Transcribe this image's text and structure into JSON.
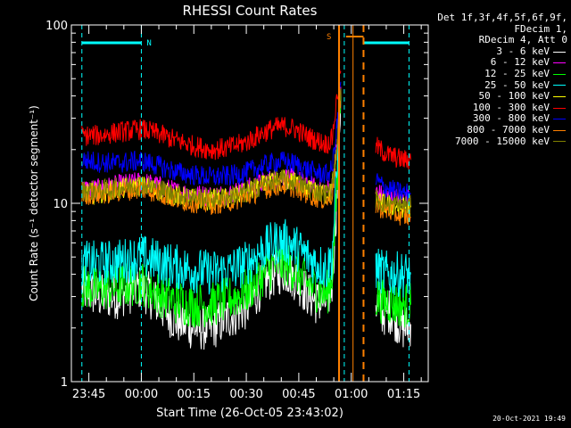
{
  "chart_data": {
    "type": "line",
    "title": "RHESSI Count Rates",
    "xlabel": "Start Time (26-Oct-05 23:43:02)",
    "ylabel": "Count Rate (s⁻¹ detector segment⁻¹)",
    "y_scale": "log",
    "ylim": [
      1,
      100
    ],
    "xlim_minutes_from_2343": [
      -3,
      99
    ],
    "y_tick_labels": [
      "1",
      "10",
      "100"
    ],
    "x_tick_labels": [
      "23:45",
      "00:00",
      "00:15",
      "00:30",
      "00:45",
      "01:00",
      "01:15"
    ],
    "x_tick_minutes": [
      2,
      17,
      32,
      47,
      62,
      77,
      92
    ],
    "grid": false,
    "legend_placement": "top-right outside",
    "legend_header": [
      "Det 1f,3f,4f,5f,6f,9f,",
      "FDecim 1,",
      "RDecim 4, Att 0"
    ],
    "night_label": "N",
    "saa_label": "S",
    "series": [
      {
        "name": "3 - 6 keV",
        "color": "#ffffff",
        "x": [
          0,
          5,
          10,
          17,
          22,
          27,
          32,
          37,
          42,
          47,
          52,
          55,
          58,
          61,
          64,
          67,
          70,
          71.5,
          73,
          74,
          75,
          78,
          82,
          84,
          86,
          88,
          90,
          92,
          94
        ],
        "y": [
          3.3,
          3.0,
          3.0,
          3.4,
          2.7,
          2.2,
          2.0,
          2.0,
          2.3,
          2.6,
          3.6,
          4.0,
          4.2,
          3.8,
          3.2,
          2.8,
          2.8,
          3.5,
          12,
          40,
          null,
          null,
          null,
          2.8,
          2.4,
          2.5,
          2.2,
          2.0,
          2.1
        ]
      },
      {
        "name": "6 - 12 keV",
        "color": "#ff00ff",
        "x": [
          0,
          5,
          10,
          17,
          22,
          27,
          32,
          37,
          42,
          47,
          52,
          55,
          58,
          61,
          64,
          67,
          70,
          71.5,
          73,
          74,
          75,
          78,
          82,
          84,
          86,
          88,
          90,
          92,
          94
        ],
        "y": [
          12.0,
          12.0,
          12.6,
          13.2,
          12.5,
          11.6,
          11.2,
          11.0,
          11.3,
          12.0,
          13.2,
          13.7,
          14.0,
          13.6,
          12.8,
          12.2,
          11.8,
          12.6,
          22,
          45,
          null,
          null,
          null,
          11.6,
          11.0,
          10.8,
          10.7,
          10.6,
          10.6
        ]
      },
      {
        "name": "12 - 25 keV",
        "color": "#00ff00",
        "x": [
          0,
          5,
          10,
          17,
          22,
          27,
          32,
          37,
          42,
          47,
          52,
          55,
          58,
          61,
          64,
          67,
          70,
          71.5,
          73,
          74,
          75,
          78,
          82,
          84,
          86,
          88,
          90,
          92,
          94
        ],
        "y": [
          3.4,
          3.3,
          3.4,
          3.6,
          3.1,
          2.8,
          2.7,
          2.7,
          2.9,
          3.2,
          4.0,
          4.5,
          4.6,
          4.2,
          3.6,
          3.3,
          3.1,
          3.8,
          13,
          40,
          null,
          null,
          null,
          3.0,
          2.8,
          2.8,
          2.7,
          2.7,
          2.7
        ]
      },
      {
        "name": "25 - 50 keV",
        "color": "#00ffff",
        "x": [
          0,
          5,
          10,
          17,
          22,
          27,
          32,
          37,
          42,
          47,
          52,
          55,
          58,
          61,
          64,
          67,
          70,
          71.5,
          73,
          74,
          75,
          78,
          82,
          84,
          86,
          88,
          90,
          92,
          94
        ],
        "y": [
          4.6,
          4.6,
          4.7,
          5.0,
          4.7,
          4.4,
          4.2,
          4.1,
          4.2,
          4.6,
          5.5,
          6.0,
          6.1,
          5.7,
          5.1,
          4.6,
          4.3,
          5.0,
          16,
          42,
          null,
          null,
          null,
          4.3,
          4.1,
          4.0,
          4.0,
          4.0,
          4.0
        ]
      },
      {
        "name": "50 - 100 keV",
        "color": "#ffff00",
        "x": [
          0,
          5,
          10,
          17,
          22,
          27,
          32,
          37,
          42,
          47,
          52,
          55,
          58,
          61,
          64,
          67,
          70,
          71.5,
          73,
          74,
          75,
          78,
          82,
          84,
          86,
          88,
          90,
          92,
          94
        ],
        "y": [
          11.4,
          11.4,
          11.9,
          12.5,
          11.8,
          11.0,
          10.6,
          10.4,
          10.7,
          11.4,
          12.6,
          13.2,
          13.5,
          13.0,
          12.2,
          11.6,
          11.2,
          12.0,
          21,
          44,
          null,
          null,
          null,
          10.3,
          9.9,
          9.7,
          9.6,
          9.5,
          9.5
        ]
      },
      {
        "name": "100 - 300 keV",
        "color": "#ff0000",
        "x": [
          0,
          5,
          10,
          17,
          22,
          27,
          32,
          37,
          42,
          47,
          52,
          55,
          58,
          61,
          64,
          67,
          70,
          71.5,
          73,
          74,
          75,
          78,
          82,
          84,
          86,
          88,
          90,
          92,
          94
        ],
        "y": [
          24,
          24,
          25,
          26,
          24.5,
          22.5,
          21,
          20,
          20.5,
          22,
          25,
          26.5,
          27,
          26,
          24,
          22.5,
          21.5,
          23,
          40,
          55,
          null,
          null,
          null,
          21,
          19.5,
          18.5,
          18,
          17.5,
          17.5
        ]
      },
      {
        "name": "300 - 800 keV",
        "color": "#0000ff",
        "x": [
          0,
          5,
          10,
          17,
          22,
          27,
          32,
          37,
          42,
          47,
          52,
          55,
          58,
          61,
          64,
          67,
          70,
          71.5,
          73,
          74,
          75,
          78,
          82,
          84,
          86,
          88,
          90,
          92,
          94
        ],
        "y": [
          17.5,
          17.0,
          16.8,
          17.3,
          16.2,
          15.0,
          14.4,
          14.0,
          14.2,
          14.9,
          16.3,
          16.9,
          17.2,
          16.6,
          15.6,
          14.9,
          14.5,
          15.5,
          28,
          48,
          null,
          null,
          null,
          13.5,
          12.5,
          12.0,
          11.6,
          11.4,
          11.4
        ]
      },
      {
        "name": "800 - 7000 keV",
        "color": "#ff8000",
        "x": [
          0,
          5,
          10,
          17,
          22,
          27,
          32,
          37,
          42,
          47,
          52,
          55,
          58,
          61,
          64,
          67,
          70,
          71.5,
          73,
          74,
          75,
          78,
          82,
          84,
          86,
          88,
          90,
          92,
          94
        ],
        "y": [
          11.2,
          11.2,
          11.6,
          12.1,
          11.4,
          10.5,
          10.1,
          9.9,
          10.2,
          10.9,
          12.0,
          12.5,
          12.7,
          12.2,
          11.4,
          10.8,
          10.4,
          11.2,
          20,
          43,
          null,
          null,
          null,
          9.8,
          9.3,
          9.0,
          8.7,
          8.5,
          8.4
        ]
      },
      {
        "name": "7000 - 15000 keV",
        "color": "#808000",
        "x": [
          0,
          5,
          10,
          17,
          22,
          27,
          32,
          37,
          42,
          47,
          52,
          55,
          58,
          61,
          64,
          67,
          70,
          71.5,
          73,
          74,
          75,
          78,
          82,
          84,
          86,
          88,
          90,
          92,
          94
        ],
        "y": [
          11.8,
          11.8,
          12.2,
          12.8,
          12.0,
          11.2,
          10.8,
          10.6,
          10.9,
          11.6,
          12.8,
          13.3,
          13.6,
          13.1,
          12.3,
          11.7,
          11.3,
          12.1,
          21,
          44,
          null,
          null,
          null,
          10.6,
          10.1,
          9.9,
          9.8,
          9.7,
          9.7
        ]
      }
    ],
    "night_lines_minutes": [
      0,
      17
    ],
    "saa_lines_minutes": [
      73.5,
      77.5,
      80.5
    ],
    "flag_lines_minutes": [
      75,
      93.5
    ],
    "colors": {
      "background": "#000000",
      "axes": "#ffffff",
      "night": "#00ffff",
      "saa": "#ff8000"
    }
  },
  "timestamp": "20-Oct-2021 19:49"
}
